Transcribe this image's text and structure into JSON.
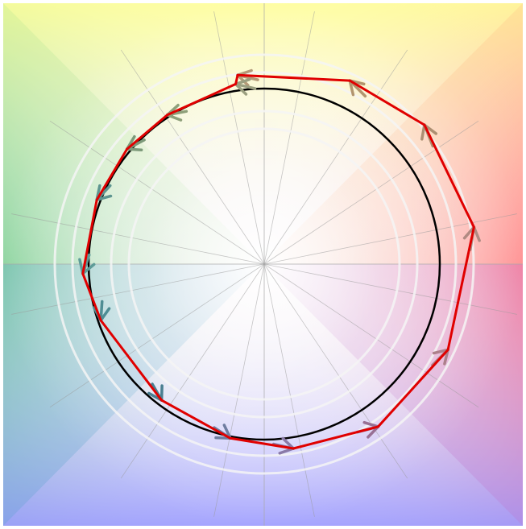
{
  "diagram": {
    "reference_circle_color": "#000000",
    "ring_color": "#f4f4f4",
    "spoke_color": "#9a9a9a",
    "axis_color": "#a8a8a8",
    "polyline_color": "#e00000",
    "spoke_count": 16,
    "ring_count": 4,
    "arrows": [
      {
        "angle_deg": 98,
        "radius": 0.823,
        "color": "#b59a78"
      },
      {
        "angle_deg": 65,
        "radius": 0.873,
        "color": "#b2956f"
      },
      {
        "angle_deg": 41,
        "radius": 0.915,
        "color": "#ad8f72"
      },
      {
        "angle_deg": 10,
        "radius": 0.918,
        "color": "#b08a82"
      },
      {
        "angle_deg": -25,
        "radius": 0.874,
        "color": "#ad808b"
      },
      {
        "angle_deg": -55,
        "radius": 0.856,
        "color": "#987094"
      },
      {
        "angle_deg": -81,
        "radius": 0.805,
        "color": "#8a7aa8"
      },
      {
        "angle_deg": -101,
        "radius": 0.765,
        "color": "#6f7da0"
      },
      {
        "angle_deg": -127,
        "radius": 0.735,
        "color": "#4a7f91"
      },
      {
        "angle_deg": -161,
        "radius": 0.745,
        "color": "#4f8d94"
      },
      {
        "angle_deg": 183,
        "radius": 0.783,
        "color": "#5e9c98"
      },
      {
        "angle_deg": 159,
        "radius": 0.773,
        "color": "#5d9590"
      },
      {
        "angle_deg": 140,
        "radius": 0.772,
        "color": "#7d9a7a"
      },
      {
        "angle_deg": 123,
        "radius": 0.767,
        "color": "#8ea07a"
      },
      {
        "angle_deg": 99,
        "radius": 0.786,
        "color": "#9b9f80"
      }
    ]
  }
}
